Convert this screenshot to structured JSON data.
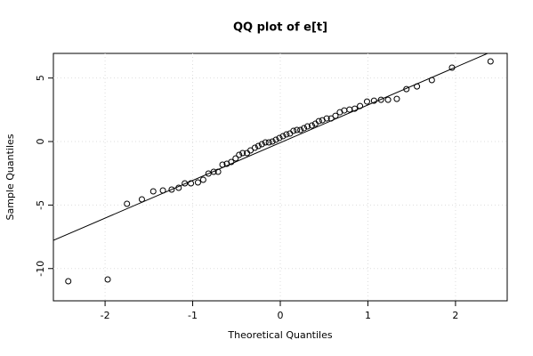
{
  "chart_data": {
    "type": "scatter",
    "title": "QQ plot of e[t]",
    "xlabel": "Theoretical Quantiles",
    "ylabel": "Sample Quantiles",
    "x": [
      -2.42,
      -1.97,
      -1.75,
      -1.58,
      -1.45,
      -1.34,
      -1.24,
      -1.16,
      -1.09,
      -1.02,
      -0.94,
      -0.88,
      -0.82,
      -0.76,
      -0.71,
      -0.66,
      -0.61,
      -0.56,
      -0.51,
      -0.47,
      -0.43,
      -0.38,
      -0.34,
      -0.29,
      -0.25,
      -0.21,
      -0.17,
      -0.13,
      -0.09,
      -0.05,
      -0.01,
      0.03,
      0.07,
      0.11,
      0.15,
      0.19,
      0.23,
      0.27,
      0.31,
      0.36,
      0.4,
      0.44,
      0.48,
      0.53,
      0.58,
      0.63,
      0.68,
      0.73,
      0.79,
      0.85,
      0.91,
      0.99,
      1.07,
      1.15,
      1.23,
      1.33,
      1.44,
      1.56,
      1.73,
      1.96,
      2.4
    ],
    "values": [
      -11.0,
      -10.86,
      -4.9,
      -4.55,
      -3.92,
      -3.85,
      -3.78,
      -3.64,
      -3.29,
      -3.29,
      -3.22,
      -3.01,
      -2.52,
      -2.38,
      -2.38,
      -1.82,
      -1.75,
      -1.61,
      -1.33,
      -1.05,
      -0.91,
      -0.91,
      -0.7,
      -0.49,
      -0.35,
      -0.21,
      -0.07,
      -0.07,
      0.0,
      0.14,
      0.28,
      0.42,
      0.56,
      0.63,
      0.84,
      0.91,
      0.91,
      1.05,
      1.19,
      1.26,
      1.4,
      1.61,
      1.68,
      1.82,
      1.82,
      2.03,
      2.31,
      2.45,
      2.52,
      2.59,
      2.8,
      3.15,
      3.22,
      3.29,
      3.29,
      3.36,
      4.13,
      4.34,
      4.84,
      5.82,
      6.31
    ],
    "line": {
      "intercept": -0.09,
      "slope": 2.97
    },
    "color": "#000000",
    "xlim": [
      -2.59,
      2.59
    ],
    "ylim": [
      -12.54,
      6.94
    ],
    "xticks": [
      -2,
      -1,
      0,
      1,
      2
    ],
    "yticks": [
      -10,
      -5,
      0,
      5
    ],
    "grid": true
  }
}
